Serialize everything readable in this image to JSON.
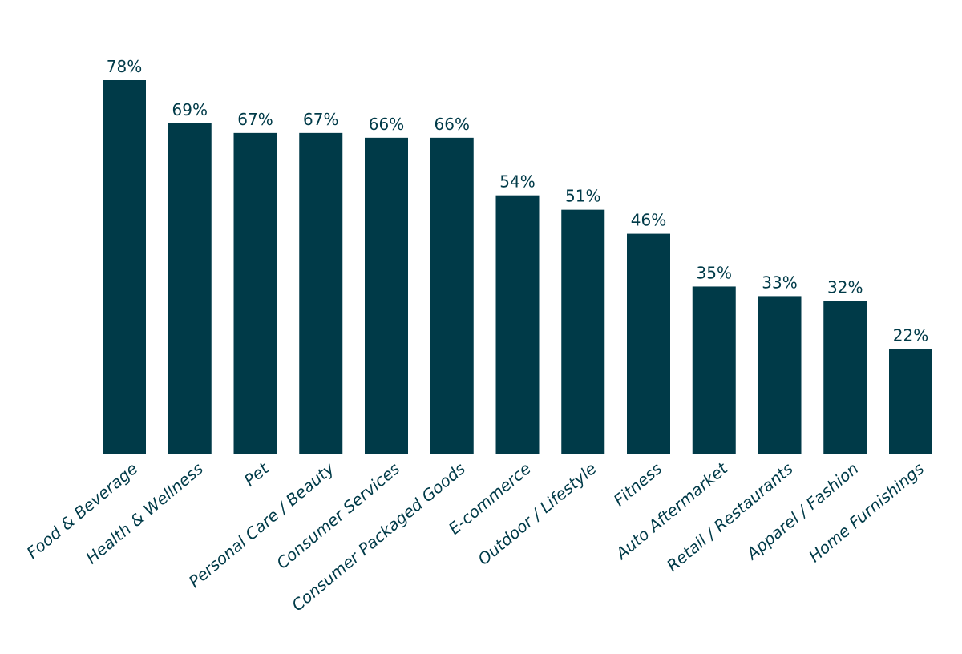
{
  "chart_data": {
    "type": "bar",
    "title": "",
    "xlabel": "",
    "ylabel": "",
    "ylim": [
      0,
      78
    ],
    "grid": false,
    "legend": "none",
    "bar_color": "#003a48",
    "text_color": "#003a48",
    "categories": [
      "Food & Beverage",
      "Health & Wellness",
      "Pet",
      "Personal Care / Beauty",
      "Consumer Services",
      "Consumer Packaged Goods",
      "E-commerce",
      "Outdoor / Lifestyle",
      "Fitness",
      "Auto Aftermarket",
      "Retail / Restaurants",
      "Apparel / Fashion",
      "Home Furnishings"
    ],
    "values": [
      78,
      69,
      67,
      67,
      66,
      66,
      54,
      51,
      46,
      35,
      33,
      32,
      22
    ],
    "value_labels": [
      "78%",
      "69%",
      "67%",
      "67%",
      "66%",
      "66%",
      "54%",
      "51%",
      "46%",
      "35%",
      "33%",
      "32%",
      "22%"
    ]
  }
}
